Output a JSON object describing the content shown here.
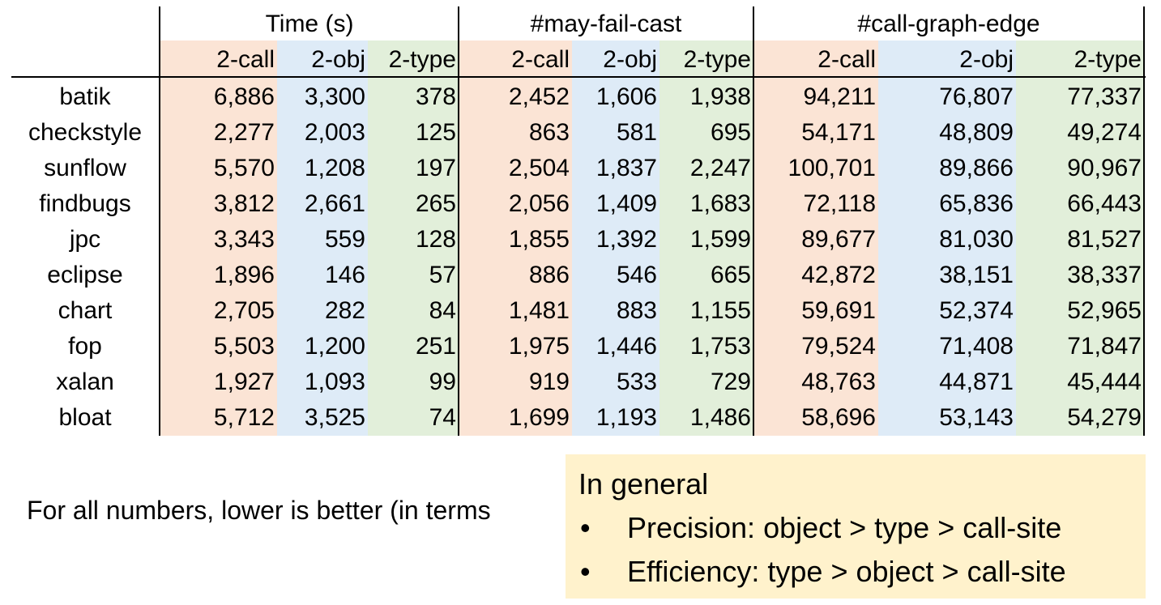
{
  "colors": {
    "call_bg": "#fbe4d5",
    "obj_bg": "#deebf7",
    "type_bg": "#e2efda",
    "callout_bg": "#fff2cc"
  },
  "table": {
    "groups": [
      "Time (s)",
      "#may-fail-cast",
      "#call-graph-edge"
    ],
    "subheaders": [
      "2-call",
      "2-obj",
      "2-type"
    ],
    "rows": [
      {
        "name": "batik",
        "values": [
          "6,886",
          "3,300",
          "378",
          "2,452",
          "1,606",
          "1,938",
          "94,211",
          "76,807",
          "77,337"
        ]
      },
      {
        "name": "checkstyle",
        "values": [
          "2,277",
          "2,003",
          "125",
          "863",
          "581",
          "695",
          "54,171",
          "48,809",
          "49,274"
        ]
      },
      {
        "name": "sunflow",
        "values": [
          "5,570",
          "1,208",
          "197",
          "2,504",
          "1,837",
          "2,247",
          "100,701",
          "89,866",
          "90,967"
        ]
      },
      {
        "name": "findbugs",
        "values": [
          "3,812",
          "2,661",
          "265",
          "2,056",
          "1,409",
          "1,683",
          "72,118",
          "65,836",
          "66,443"
        ]
      },
      {
        "name": "jpc",
        "values": [
          "3,343",
          "559",
          "128",
          "1,855",
          "1,392",
          "1,599",
          "89,677",
          "81,030",
          "81,527"
        ]
      },
      {
        "name": "eclipse",
        "values": [
          "1,896",
          "146",
          "57",
          "886",
          "546",
          "665",
          "42,872",
          "38,151",
          "38,337"
        ]
      },
      {
        "name": "chart",
        "values": [
          "2,705",
          "282",
          "84",
          "1,481",
          "883",
          "1,155",
          "59,691",
          "52,374",
          "52,965"
        ]
      },
      {
        "name": "fop",
        "values": [
          "5,503",
          "1,200",
          "251",
          "1,975",
          "1,446",
          "1,753",
          "79,524",
          "71,408",
          "71,847"
        ]
      },
      {
        "name": "xalan",
        "values": [
          "1,927",
          "1,093",
          "99",
          "919",
          "533",
          "729",
          "48,763",
          "44,871",
          "45,444"
        ]
      },
      {
        "name": "bloat",
        "values": [
          "5,712",
          "3,525",
          "74",
          "1,699",
          "1,193",
          "1,486",
          "58,696",
          "53,143",
          "54,279"
        ]
      }
    ]
  },
  "note": "For all numbers, lower is better (in terms",
  "callout": {
    "title": "In general",
    "bullet_glyph": "•",
    "items": [
      "Precision: object > type > call-site",
      "Efficiency: type > object > call-site"
    ]
  }
}
